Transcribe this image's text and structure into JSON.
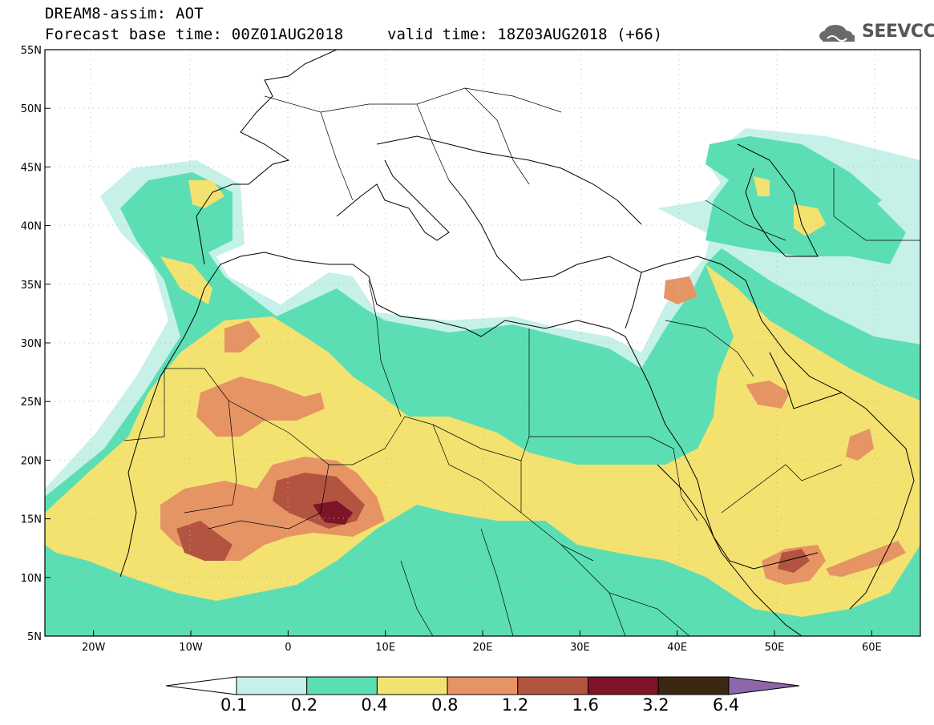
{
  "header": {
    "model_line": "DREAM8-assim: AOT",
    "base_time_line": "Forecast base time: 00Z01AUG2018",
    "valid_time_line": "valid time: 18Z03AUG2018 (+66)",
    "logo_text": "SEEVCCC"
  },
  "map": {
    "lon_range": [
      -25,
      65
    ],
    "lat_range": [
      5,
      55
    ],
    "lon_ticks": [
      {
        "value": -20,
        "label": "20W"
      },
      {
        "value": -10,
        "label": "10W"
      },
      {
        "value": 0,
        "label": "0"
      },
      {
        "value": 10,
        "label": "10E"
      },
      {
        "value": 20,
        "label": "20E"
      },
      {
        "value": 30,
        "label": "30E"
      },
      {
        "value": 40,
        "label": "40E"
      },
      {
        "value": 50,
        "label": "50E"
      },
      {
        "value": 60,
        "label": "60E"
      }
    ],
    "lat_ticks": [
      {
        "value": 55,
        "label": "55N"
      },
      {
        "value": 50,
        "label": "50N"
      },
      {
        "value": 45,
        "label": "45N"
      },
      {
        "value": 40,
        "label": "40N"
      },
      {
        "value": 35,
        "label": "35N"
      },
      {
        "value": 30,
        "label": "30N"
      },
      {
        "value": 25,
        "label": "25N"
      },
      {
        "value": 20,
        "label": "20N"
      },
      {
        "value": 15,
        "label": "15N"
      },
      {
        "value": 10,
        "label": "10N"
      },
      {
        "value": 5,
        "label": "5N"
      }
    ]
  },
  "colorbar": {
    "levels": [
      "0.1",
      "0.2",
      "0.4",
      "0.8",
      "1.2",
      "1.6",
      "3.2",
      "6.4"
    ],
    "colors": {
      "under": "#ffffff",
      "c1": "#c6f1e8",
      "c2": "#5cdeb4",
      "c3": "#f4e270",
      "c4": "#e79465",
      "c5": "#b2543f",
      "c6": "#7d1427",
      "c7": "#3c2812",
      "over": "#8e66aa"
    }
  }
}
